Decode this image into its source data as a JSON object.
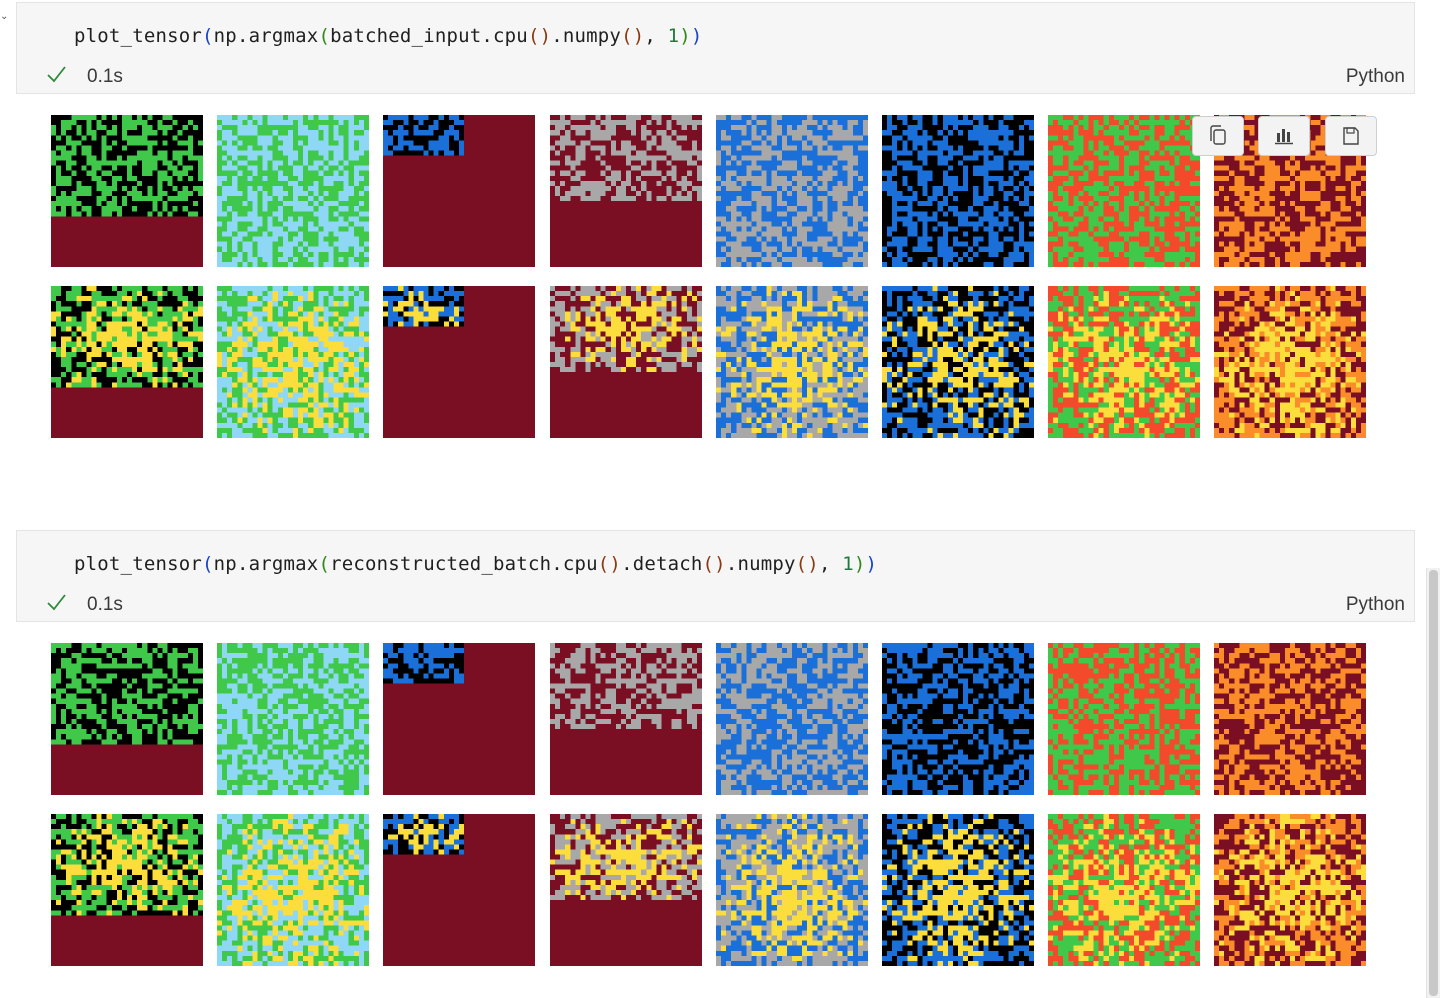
{
  "cells": [
    {
      "code_tokens": [
        {
          "t": "plot_tensor",
          "c": "fn"
        },
        {
          "t": "(",
          "c": "p1"
        },
        {
          "t": "np.argmax",
          "c": "fn"
        },
        {
          "t": "(",
          "c": "p2"
        },
        {
          "t": "batched_input.cpu",
          "c": "fn"
        },
        {
          "t": "()",
          "c": "p3"
        },
        {
          "t": ".numpy",
          "c": "fn"
        },
        {
          "t": "()",
          "c": "p3"
        },
        {
          "t": ", ",
          "c": "fn"
        },
        {
          "t": "1",
          "c": "num"
        },
        {
          "t": ")",
          "c": "p2"
        },
        {
          "t": ")",
          "c": "p1"
        }
      ],
      "exec_time": "0.1s",
      "language": "Python"
    },
    {
      "code_tokens": [
        {
          "t": "plot_tensor",
          "c": "fn"
        },
        {
          "t": "(",
          "c": "p1"
        },
        {
          "t": "np.argmax",
          "c": "fn"
        },
        {
          "t": "(",
          "c": "p2"
        },
        {
          "t": "reconstructed_batch.cpu",
          "c": "fn"
        },
        {
          "t": "()",
          "c": "p3"
        },
        {
          "t": ".detach",
          "c": "fn"
        },
        {
          "t": "()",
          "c": "p3"
        },
        {
          "t": ".numpy",
          "c": "fn"
        },
        {
          "t": "()",
          "c": "p3"
        },
        {
          "t": ", ",
          "c": "fn"
        },
        {
          "t": "1",
          "c": "num"
        },
        {
          "t": ")",
          "c": "p2"
        },
        {
          "t": ")",
          "c": "p1"
        }
      ],
      "exec_time": "0.1s",
      "language": "Python"
    }
  ],
  "palette": {
    "black": "#000000",
    "green": "#3fc84a",
    "lightblue": "#8fd8f5",
    "blue": "#1a70d8",
    "maroon": "#7a0f24",
    "gray": "#a8a8a8",
    "red": "#f24a2a",
    "orange": "#fa8c2a",
    "yellow": "#fbdd3c"
  },
  "tiles": [
    {
      "colors": [
        "black",
        "green"
      ],
      "fill_fraction": 0.66
    },
    {
      "colors": [
        "lightblue",
        "green"
      ],
      "fill_fraction": 1.0
    },
    {
      "colors": [
        "black",
        "blue"
      ],
      "fill_fraction": 0.27,
      "fill_width_fraction": 0.53
    },
    {
      "colors": [
        "maroon",
        "gray"
      ],
      "fill_fraction": 0.55
    },
    {
      "colors": [
        "gray",
        "blue"
      ],
      "fill_fraction": 1.0
    },
    {
      "colors": [
        "black",
        "blue"
      ],
      "fill_fraction": 1.0
    },
    {
      "colors": [
        "green",
        "red"
      ],
      "fill_fraction": 1.0
    },
    {
      "colors": [
        "maroon",
        "orange"
      ],
      "fill_fraction": 1.0
    }
  ],
  "output_toolbar": {
    "buttons": [
      "copy-icon",
      "chart-icon",
      "save-icon"
    ]
  }
}
